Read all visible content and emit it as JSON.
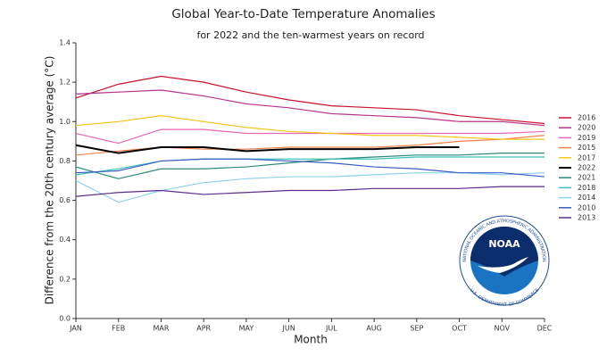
{
  "chart_data": {
    "type": "line",
    "title": "Global Year-to-Date Temperature Anomalies",
    "subtitle": "for 2022 and the ten-warmest years on record",
    "x_label": "Month",
    "y_label": "Difference from the 20th century average (°C)",
    "categories": [
      "JAN",
      "FEB",
      "MAR",
      "APR",
      "MAY",
      "JUN",
      "JUL",
      "AUG",
      "SEP",
      "OCT",
      "NOV",
      "DEC"
    ],
    "ylim": [
      0,
      1.4
    ],
    "yticks": [
      {
        "value": 0,
        "label": "0.0"
      },
      0.2,
      0.4,
      0.6,
      0.8,
      {
        "value": 1,
        "label": "1.0"
      },
      1.2,
      1.4
    ],
    "grid": false,
    "legend": "right",
    "series": [
      {
        "name": "2016",
        "color": "#c8102e",
        "values": [
          1.12,
          1.19,
          1.23,
          1.2,
          1.15,
          1.11,
          1.08,
          1.07,
          1.06,
          1.03,
          1.01,
          0.99
        ]
      },
      {
        "name": "2020",
        "color": "#b5338a",
        "values": [
          1.14,
          1.15,
          1.16,
          1.13,
          1.09,
          1.07,
          1.04,
          1.03,
          1.02,
          1.0,
          1.0,
          0.98
        ]
      },
      {
        "name": "2019",
        "color": "#e667b4",
        "values": [
          0.94,
          0.89,
          0.96,
          0.96,
          0.94,
          0.94,
          0.94,
          0.94,
          0.94,
          0.94,
          0.94,
          0.95
        ]
      },
      {
        "name": "2015",
        "color": "#f0814e",
        "values": [
          0.83,
          0.85,
          0.87,
          0.86,
          0.86,
          0.87,
          0.87,
          0.87,
          0.88,
          0.9,
          0.91,
          0.93
        ]
      },
      {
        "name": "2017",
        "color": "#f5c518",
        "values": [
          0.98,
          1.0,
          1.03,
          1.0,
          0.97,
          0.95,
          0.94,
          0.93,
          0.93,
          0.92,
          0.91,
          0.91
        ]
      },
      {
        "name": "2022",
        "color": "#000000",
        "values": [
          0.88,
          0.84,
          0.87,
          0.87,
          0.85,
          0.86,
          0.86,
          0.86,
          0.87,
          0.87,
          null,
          null
        ]
      },
      {
        "name": "2021",
        "color": "#2a8a7a",
        "values": [
          0.77,
          0.71,
          0.76,
          0.76,
          0.77,
          0.79,
          0.81,
          0.82,
          0.83,
          0.83,
          0.84,
          0.84
        ]
      },
      {
        "name": "2018",
        "color": "#3cc2b8",
        "values": [
          0.73,
          0.76,
          0.8,
          0.81,
          0.81,
          0.81,
          0.81,
          0.81,
          0.82,
          0.82,
          0.82,
          0.82
        ]
      },
      {
        "name": "2014",
        "color": "#8fd0ee",
        "values": [
          0.7,
          0.59,
          0.65,
          0.69,
          0.71,
          0.72,
          0.72,
          0.73,
          0.74,
          0.74,
          0.73,
          0.74
        ]
      },
      {
        "name": "2010",
        "color": "#3a5cc6",
        "values": [
          0.74,
          0.75,
          0.8,
          0.81,
          0.81,
          0.8,
          0.79,
          0.77,
          0.76,
          0.74,
          0.74,
          0.72
        ]
      },
      {
        "name": "2013",
        "color": "#5b2c8c",
        "values": [
          0.62,
          0.64,
          0.65,
          0.63,
          0.64,
          0.65,
          0.65,
          0.66,
          0.66,
          0.66,
          0.67,
          0.67
        ]
      }
    ]
  },
  "logo": {
    "name": "NOAA",
    "top_text": "NATIONAL OCEANIC AND ATMOSPHERIC ADMINISTRATION",
    "bottom_text": "U.S. DEPARTMENT OF COMMERCE"
  }
}
